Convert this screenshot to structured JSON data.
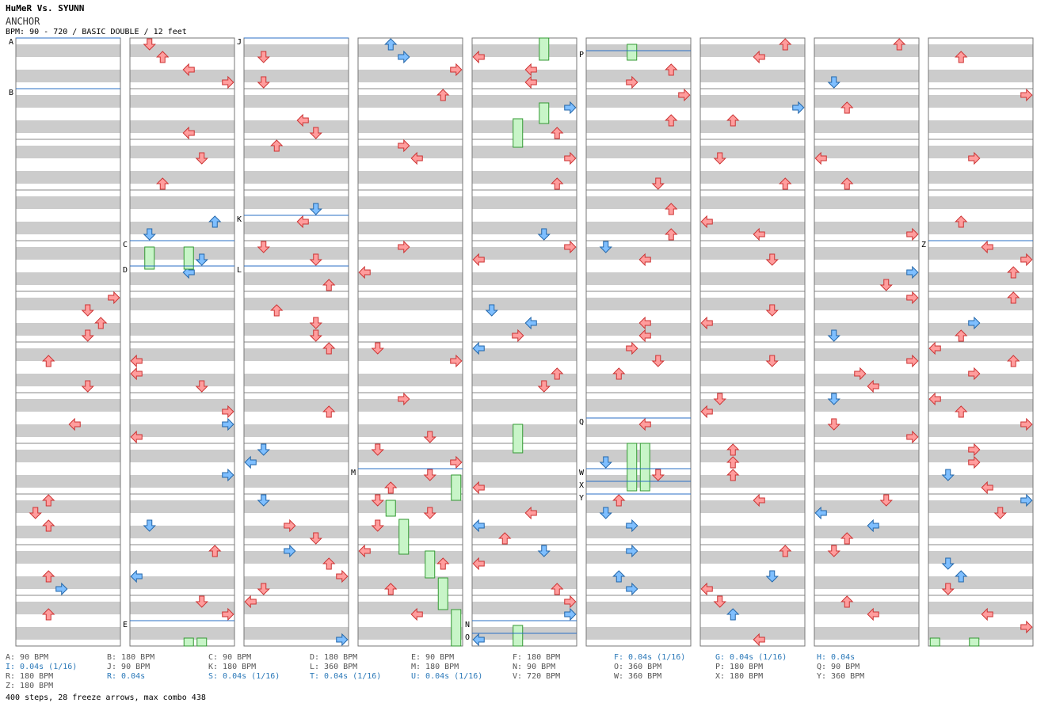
{
  "header": {
    "song_title": "HuMeR Vs. SYUNN",
    "chart_name": "ANCHOR",
    "meta": "BPM: 90 - 720 / BASIC DOUBLE / 12 feet"
  },
  "colors": {
    "arrow_red": "#ff9d9d",
    "arrow_red_stroke": "#cc3333",
    "arrow_blue": "#7fbfff",
    "arrow_blue_stroke": "#2266aa",
    "arrow_pink": "#ffb3ff",
    "arrow_pink_stroke": "#aa44aa",
    "freeze": "#c8f5c8",
    "freeze_stroke": "#339933",
    "stripe": "#cccccc",
    "marker_line": "#2a6fc4"
  },
  "chart_data": {
    "type": "step-chart",
    "style": "BASIC DOUBLE",
    "difficulty_feet": 12,
    "bpm_range": [
      90,
      720
    ],
    "total_steps": 400,
    "freeze_arrows": 28,
    "max_combo": 438,
    "columns": 9,
    "measures_per_column": 12,
    "section_markers": [
      {
        "label": "A",
        "column": 1,
        "measure": 1
      },
      {
        "label": "B",
        "column": 1,
        "measure": 3
      },
      {
        "label": "C",
        "column": 2,
        "measure": 9
      },
      {
        "label": "D",
        "column": 2,
        "measure": 10
      },
      {
        "label": "E",
        "column": 2,
        "measure": 24
      },
      {
        "label": "J",
        "column": 3,
        "measure": 1
      },
      {
        "label": "K",
        "column": 3,
        "measure": 8
      },
      {
        "label": "L",
        "column": 3,
        "measure": 10
      },
      {
        "label": "M",
        "column": 4,
        "measure": 17
      },
      {
        "label": "N",
        "column": 5,
        "measure": 24
      },
      {
        "label": "O",
        "column": 5,
        "measure": 24
      },
      {
        "label": "P",
        "column": 6,
        "measure": 1
      },
      {
        "label": "Q",
        "column": 6,
        "measure": 15
      },
      {
        "label": "W",
        "column": 6,
        "measure": 17
      },
      {
        "label": "X",
        "column": 6,
        "measure": 18
      },
      {
        "label": "Y",
        "column": 6,
        "measure": 18
      },
      {
        "label": "Z",
        "column": 9,
        "measure": 9
      }
    ]
  },
  "legend": [
    {
      "text": "A: 90 BPM",
      "kind": "bpm"
    },
    {
      "text": "B: 180 BPM",
      "kind": "bpm"
    },
    {
      "text": "C: 90 BPM",
      "kind": "bpm"
    },
    {
      "text": "D: 180 BPM",
      "kind": "bpm"
    },
    {
      "text": "E: 90 BPM",
      "kind": "bpm"
    },
    {
      "text": "F: 180 BPM",
      "kind": "bpm"
    },
    {
      "text": "F: 0.04s (1/16)",
      "kind": "stop"
    },
    {
      "text": "G: 0.04s (1/16)",
      "kind": "stop"
    },
    {
      "text": "H: 0.04s",
      "kind": "stop"
    },
    {
      "text": "I: 0.04s (1/16)",
      "kind": "stop"
    },
    {
      "text": "J: 90 BPM",
      "kind": "bpm"
    },
    {
      "text": "K: 180 BPM",
      "kind": "bpm"
    },
    {
      "text": "L: 360 BPM",
      "kind": "bpm"
    },
    {
      "text": "M: 180 BPM",
      "kind": "bpm"
    },
    {
      "text": "N: 90 BPM",
      "kind": "bpm"
    },
    {
      "text": "O: 360 BPM",
      "kind": "bpm"
    },
    {
      "text": "P: 180 BPM",
      "kind": "bpm"
    },
    {
      "text": "Q: 90 BPM",
      "kind": "bpm"
    },
    {
      "text": "R: 180 BPM",
      "kind": "bpm"
    },
    {
      "text": "R: 0.04s",
      "kind": "stop"
    },
    {
      "text": "S: 0.04s (1/16)",
      "kind": "stop"
    },
    {
      "text": "T: 0.04s (1/16)",
      "kind": "stop"
    },
    {
      "text": "U: 0.04s (1/16)",
      "kind": "stop"
    },
    {
      "text": "V: 720 BPM",
      "kind": "bpm"
    },
    {
      "text": "W: 360 BPM",
      "kind": "bpm"
    },
    {
      "text": "X: 180 BPM",
      "kind": "bpm"
    },
    {
      "text": "Y: 360 BPM",
      "kind": "bpm"
    },
    {
      "text": "Z: 180 BPM",
      "kind": "bpm"
    }
  ],
  "summary": "400 steps, 28 freeze arrows, max combo 438"
}
